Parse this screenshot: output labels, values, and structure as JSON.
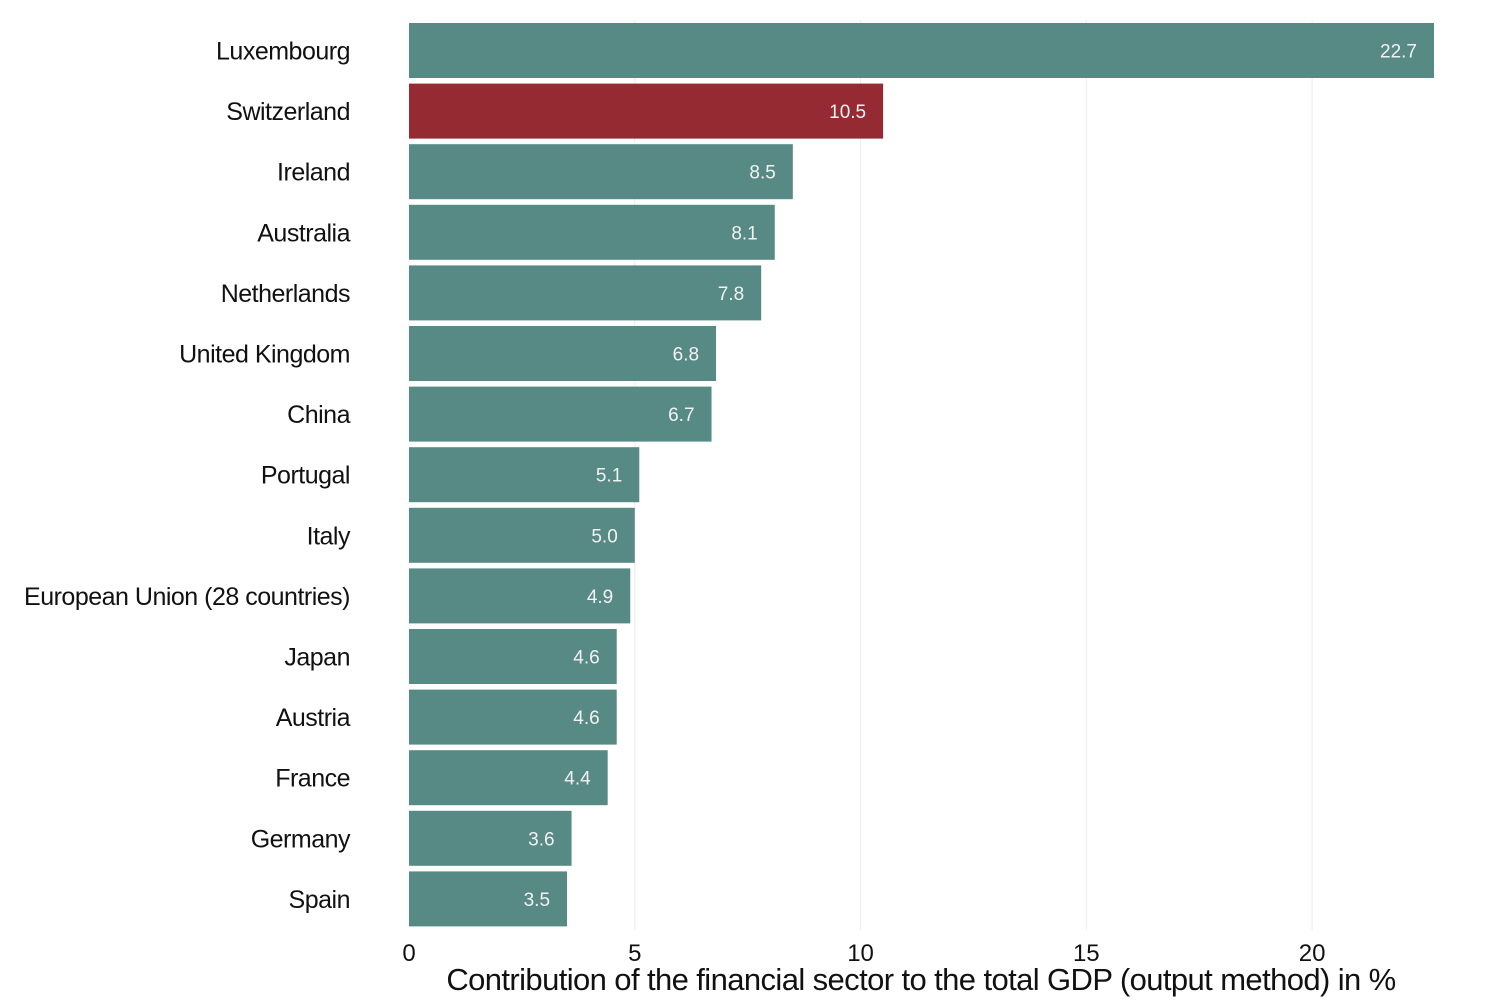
{
  "chart_data": {
    "type": "bar",
    "orientation": "horizontal",
    "categories": [
      "Luxembourg",
      "Switzerland",
      "Ireland",
      "Australia",
      "Netherlands",
      "United Kingdom",
      "China",
      "Portugal",
      "Italy",
      "European Union (28 countries)",
      "Japan",
      "Austria",
      "France",
      "Germany",
      "Spain"
    ],
    "values": [
      22.7,
      10.5,
      8.5,
      8.1,
      7.8,
      6.8,
      6.7,
      5.1,
      5.0,
      4.9,
      4.6,
      4.6,
      4.4,
      3.6,
      3.5
    ],
    "value_labels": [
      "22.7",
      "10.5",
      "8.5",
      "8.1",
      "7.8",
      "6.8",
      "6.7",
      "5.1",
      "5.0",
      "4.9",
      "4.6",
      "4.6",
      "4.4",
      "3.6",
      "3.5"
    ],
    "highlight": "Switzerland",
    "xlabel": "Contribution of the financial sector to the total GDP (output method) in %",
    "ylabel": "",
    "title": "",
    "xlim": [
      0,
      22.7
    ],
    "xticks": [
      0,
      5,
      10,
      15,
      20
    ],
    "xtick_labels": [
      "0",
      "5",
      "10",
      "15",
      "20"
    ],
    "grid": "vertical",
    "legend": "none",
    "colors": {
      "bar": "#578985",
      "highlight": "#962a32",
      "value_label": "#f2f2f2",
      "grid": "#ebebeb"
    }
  }
}
